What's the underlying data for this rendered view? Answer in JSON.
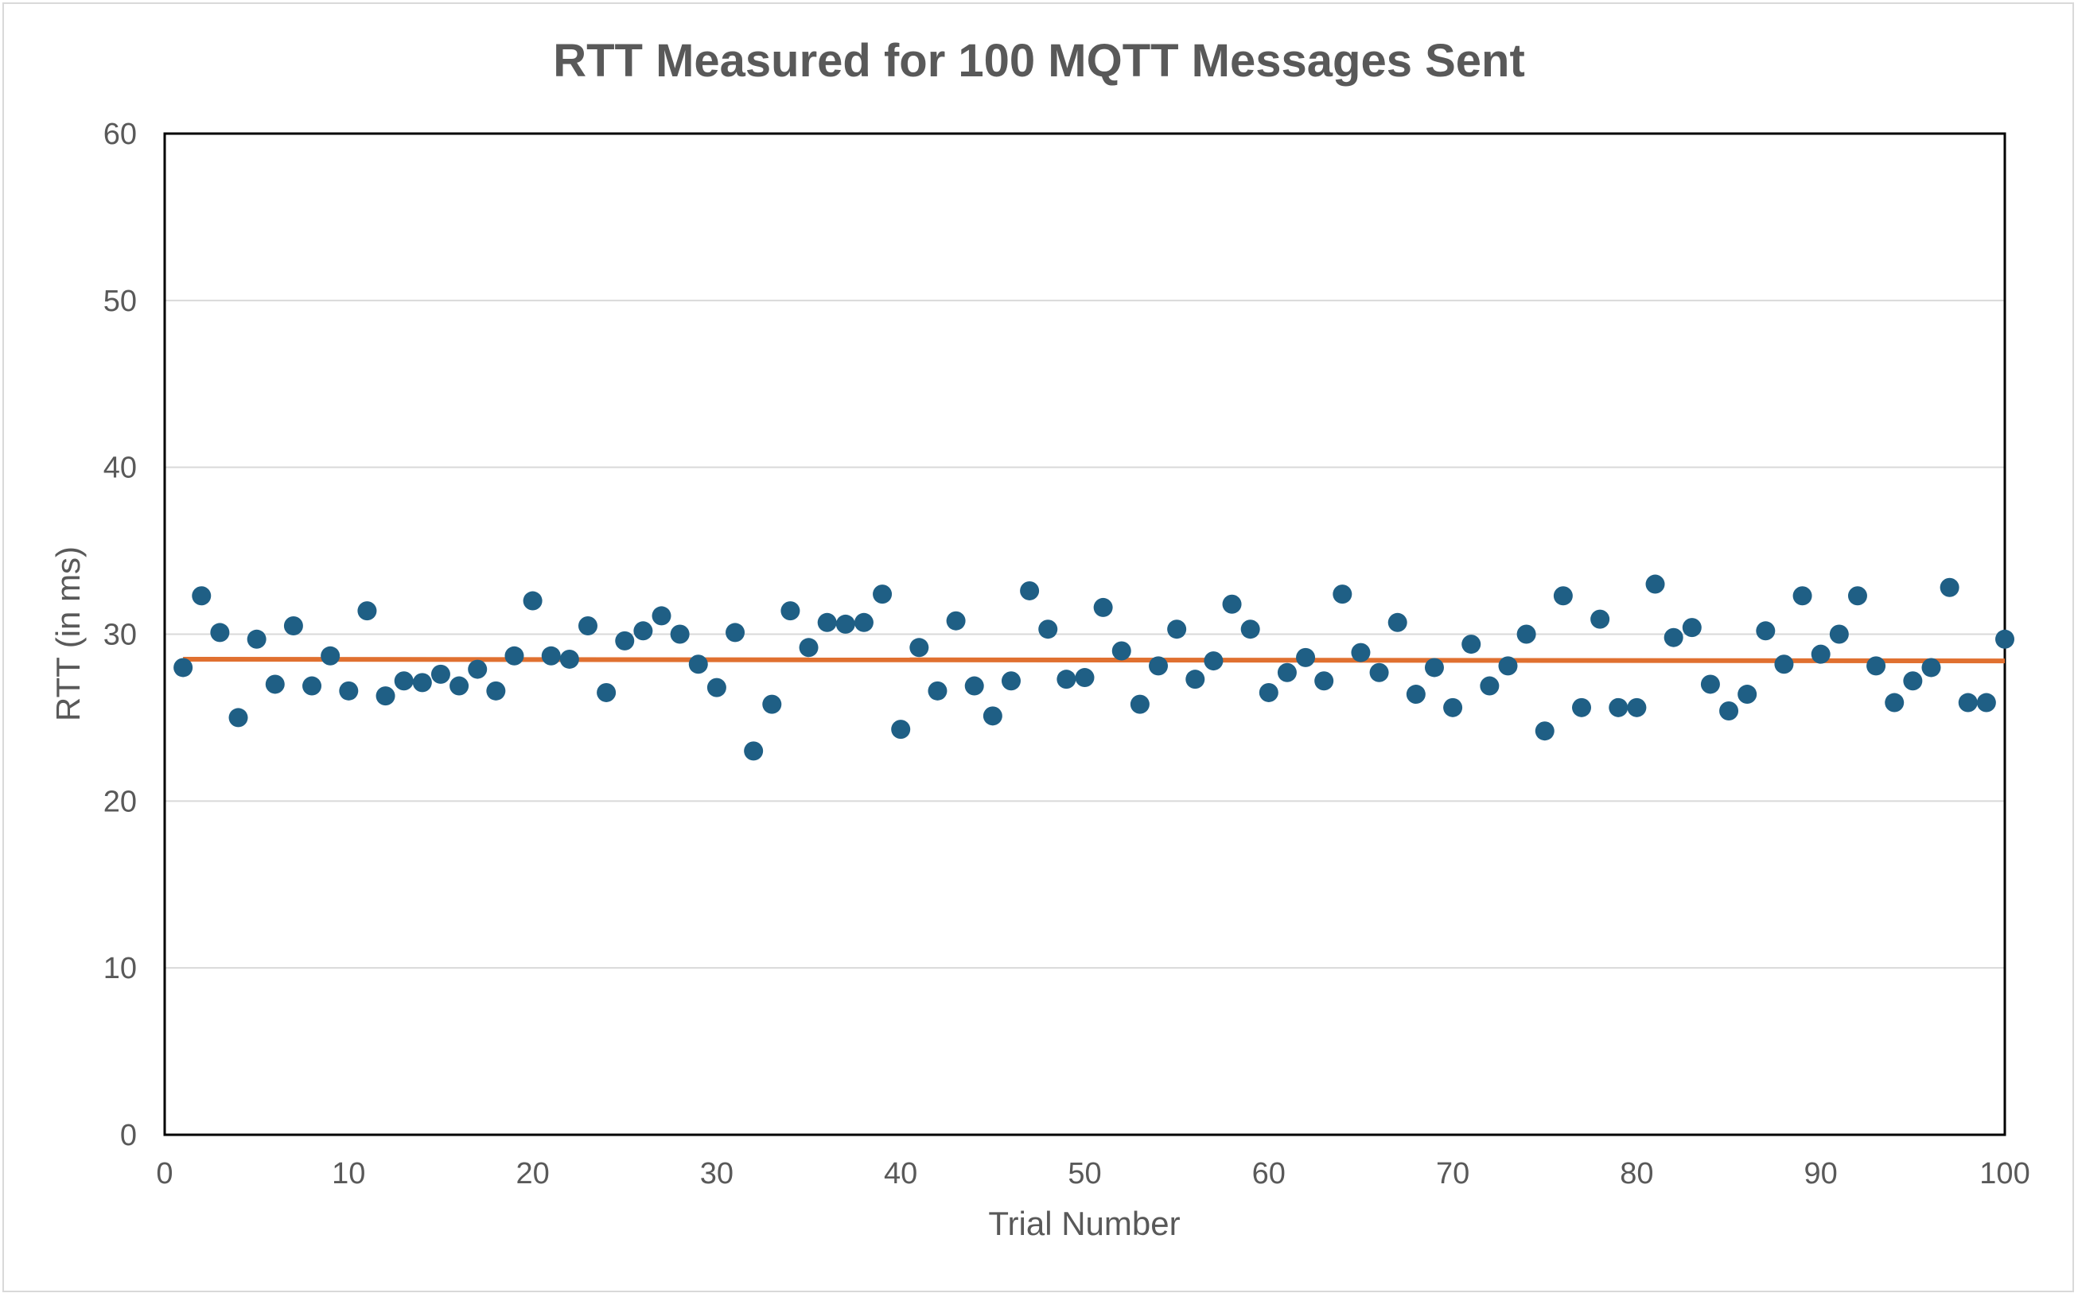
{
  "chart_data": {
    "type": "scatter",
    "title": "RTT Measured for 100 MQTT Messages Sent",
    "xlabel": "Trial Number",
    "ylabel": "RTT (in ms)",
    "xlim": [
      0,
      100
    ],
    "ylim": [
      0,
      60
    ],
    "xticks": [
      0,
      10,
      20,
      30,
      40,
      50,
      60,
      70,
      80,
      90,
      100
    ],
    "yticks": [
      0,
      10,
      20,
      30,
      40,
      50,
      60
    ],
    "grid": "horizontal",
    "legend": "none",
    "colors": {
      "points": "#1f5f85",
      "trendline": "#e07030",
      "grid": "#d9d9d9",
      "text": "#595959"
    },
    "series": [
      {
        "x": [
          1,
          2,
          3,
          4,
          5,
          6,
          7,
          8,
          9,
          10,
          11,
          12,
          13,
          14,
          15,
          16,
          17,
          18,
          19,
          20,
          21,
          22,
          23,
          24,
          25,
          26,
          27,
          28,
          29,
          30,
          31,
          32,
          33,
          34,
          35,
          36,
          37,
          38,
          39,
          40,
          41,
          42,
          43,
          44,
          45,
          46,
          47,
          48,
          49,
          50,
          51,
          52,
          53,
          54,
          55,
          56,
          57,
          58,
          59,
          60,
          61,
          62,
          63,
          64,
          65,
          66,
          67,
          68,
          69,
          70,
          71,
          72,
          73,
          74,
          75,
          76,
          77,
          78,
          79,
          80,
          81,
          82,
          83,
          84,
          85,
          86,
          87,
          88,
          89,
          90,
          91,
          92,
          93,
          94,
          95,
          96,
          97,
          98,
          99,
          100
        ],
        "y": [
          28.0,
          32.3,
          30.1,
          25.0,
          29.7,
          27.0,
          30.5,
          26.9,
          28.7,
          26.6,
          31.4,
          26.3,
          27.2,
          27.1,
          27.6,
          26.9,
          27.9,
          26.6,
          28.7,
          32.0,
          28.7,
          28.5,
          30.5,
          26.5,
          29.6,
          30.2,
          31.1,
          30.0,
          28.2,
          26.8,
          30.1,
          23.0,
          25.8,
          31.4,
          29.2,
          30.7,
          30.6,
          30.7,
          32.4,
          24.3,
          29.2,
          26.6,
          30.8,
          26.9,
          25.1,
          27.2,
          32.6,
          30.3,
          27.3,
          27.4,
          31.6,
          29.0,
          25.8,
          28.1,
          30.3,
          27.3,
          28.4,
          31.8,
          30.3,
          26.5,
          27.7,
          28.6,
          27.2,
          32.4,
          28.9,
          27.7,
          30.7,
          26.4,
          28.0,
          25.6,
          29.4,
          26.9,
          28.1,
          30.0,
          24.2,
          32.3,
          25.6,
          30.9,
          25.6,
          25.6,
          33.0,
          29.8,
          30.4,
          27.0,
          25.4,
          26.4,
          30.2,
          28.2,
          32.3,
          28.8,
          30.0,
          32.3,
          28.1,
          25.9,
          27.2,
          28.0,
          32.8,
          25.9,
          25.9,
          29.7
        ]
      }
    ],
    "trendline": {
      "x": [
        1,
        100
      ],
      "y": [
        28.5,
        28.4
      ]
    }
  }
}
